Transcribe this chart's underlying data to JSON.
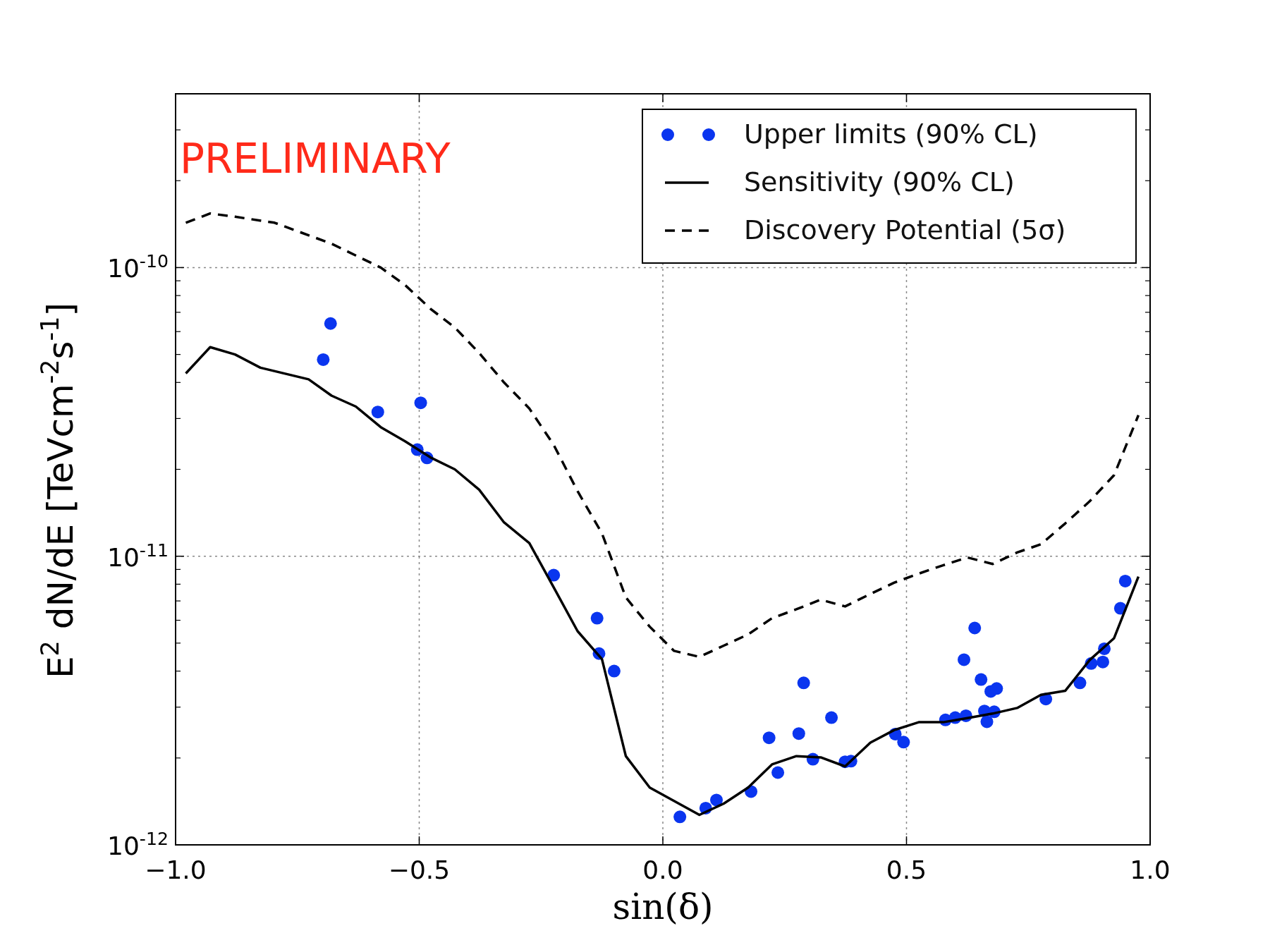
{
  "chart_data": {
    "type": "scatter",
    "xlabel": "sin(δ)",
    "ylabel": "E$^{2}$ dN/dE [TeVcm$^{-2}$s$^{-1}$]",
    "annotations": [
      "PRELIMINARY"
    ],
    "log": "y",
    "grid": true,
    "legend": "top right",
    "xlim": [
      -1.0,
      1.0
    ],
    "xticks": [
      {
        "value": -1.0,
        "label": "−1.0"
      },
      {
        "value": -0.5,
        "label": "−0.5"
      },
      {
        "value": 0.0,
        "label": "0.0"
      },
      {
        "value": 0.5,
        "label": "0.5"
      },
      {
        "value": 1.0,
        "label": "1.0"
      }
    ],
    "ylim": [
      1e-12,
      4e-10
    ],
    "yticks": [
      {
        "value": 1e-12,
        "label": "10$^{-12}$"
      },
      {
        "value": 1e-11,
        "label": "10$^{-11}$"
      },
      {
        "value": 1e-10,
        "label": "10$^{-10}$"
      }
    ],
    "series": [
      {
        "name": "Upper limits (90% CL)",
        "marker": "circle",
        "color": "#0a35ef",
        "x": [
          -0.697,
          -0.682,
          -0.585,
          -0.497,
          -0.504,
          -0.484,
          -0.224,
          -0.135,
          -0.131,
          -0.1,
          0.035,
          0.088,
          0.11,
          0.181,
          0.218,
          0.236,
          0.279,
          0.289,
          0.308,
          0.346,
          0.374,
          0.386,
          0.477,
          0.494,
          0.58,
          0.6,
          0.622,
          0.618,
          0.64,
          0.653,
          0.66,
          0.665,
          0.673,
          0.685,
          0.68,
          0.786,
          0.856,
          0.879,
          0.903,
          0.906,
          0.939,
          0.949
        ],
        "values": [
          4.8e-11,
          6.4e-11,
          3.16e-11,
          3.4e-11,
          2.34e-11,
          2.19e-11,
          8.6e-12,
          6.1e-12,
          4.6e-12,
          4e-12,
          1.25e-12,
          1.34e-12,
          1.43e-12,
          1.53e-12,
          2.35e-12,
          1.78e-12,
          2.43e-12,
          3.64e-12,
          1.98e-12,
          2.76e-12,
          1.94e-12,
          1.95e-12,
          2.42e-12,
          2.27e-12,
          2.71e-12,
          2.76e-12,
          2.8e-12,
          4.38e-12,
          5.64e-12,
          3.74e-12,
          2.91e-12,
          2.67e-12,
          3.4e-12,
          3.48e-12,
          2.89e-12,
          3.2e-12,
          3.64e-12,
          4.25e-12,
          4.3e-12,
          4.78e-12,
          6.6e-12,
          8.2e-12
        ]
      },
      {
        "name": "Sensitivity (90% CL)",
        "type": "line",
        "line_style": "solid",
        "color": "#000000",
        "x": [
          -0.979,
          -0.929,
          -0.878,
          -0.826,
          -0.727,
          -0.68,
          -0.63,
          -0.579,
          -0.529,
          -0.477,
          -0.427,
          -0.377,
          -0.326,
          -0.274,
          -0.224,
          -0.175,
          -0.125,
          -0.076,
          -0.027,
          0.023,
          0.075,
          0.125,
          0.175,
          0.224,
          0.274,
          0.324,
          0.374,
          0.426,
          0.475,
          0.525,
          0.575,
          0.625,
          0.677,
          0.727,
          0.776,
          0.826,
          0.876,
          0.926,
          0.976
        ],
        "values": [
          4.3e-11,
          5.3e-11,
          5e-11,
          4.5e-11,
          4.1e-11,
          3.6e-11,
          3.3e-11,
          2.8e-11,
          2.5e-11,
          2.2e-11,
          2e-11,
          1.7e-11,
          1.31e-11,
          1.11e-11,
          7.8e-12,
          5.5e-12,
          4.4e-12,
          2.03e-12,
          1.58e-12,
          1.42e-12,
          1.27e-12,
          1.39e-12,
          1.58e-12,
          1.9e-12,
          2.03e-12,
          2.01e-12,
          1.87e-12,
          2.26e-12,
          2.5e-12,
          2.66e-12,
          2.66e-12,
          2.75e-12,
          2.85e-12,
          2.98e-12,
          3.31e-12,
          3.42e-12,
          4.37e-12,
          5.2e-12,
          8.5e-12
        ]
      },
      {
        "name": "Discovery Potential (5σ)",
        "type": "line",
        "line_style": "dashed",
        "color": "#000000",
        "x": [
          -0.979,
          -0.929,
          -0.878,
          -0.797,
          -0.68,
          -0.579,
          -0.529,
          -0.477,
          -0.427,
          -0.377,
          -0.326,
          -0.274,
          -0.224,
          -0.175,
          -0.125,
          -0.076,
          -0.027,
          0.023,
          0.075,
          0.125,
          0.175,
          0.224,
          0.274,
          0.324,
          0.374,
          0.426,
          0.475,
          0.525,
          0.575,
          0.625,
          0.677,
          0.727,
          0.776,
          0.826,
          0.876,
          0.926,
          0.976
        ],
        "values": [
          1.43e-10,
          1.54e-10,
          1.5e-10,
          1.43e-10,
          1.21e-10,
          1e-10,
          8.7e-11,
          7.2e-11,
          6.2e-11,
          5.06e-11,
          4e-11,
          3.25e-11,
          2.43e-11,
          1.68e-11,
          1.2e-11,
          7.2e-12,
          5.7e-12,
          4.7e-12,
          4.48e-12,
          4.9e-12,
          5.36e-12,
          6.1e-12,
          6.55e-12,
          7.07e-12,
          6.7e-12,
          7.4e-12,
          8.1e-12,
          8.7e-12,
          9.3e-12,
          9.9e-12,
          9.4e-12,
          1.03e-11,
          1.1e-11,
          1.3e-11,
          1.55e-11,
          1.91e-11,
          3.08e-11
        ]
      }
    ]
  }
}
